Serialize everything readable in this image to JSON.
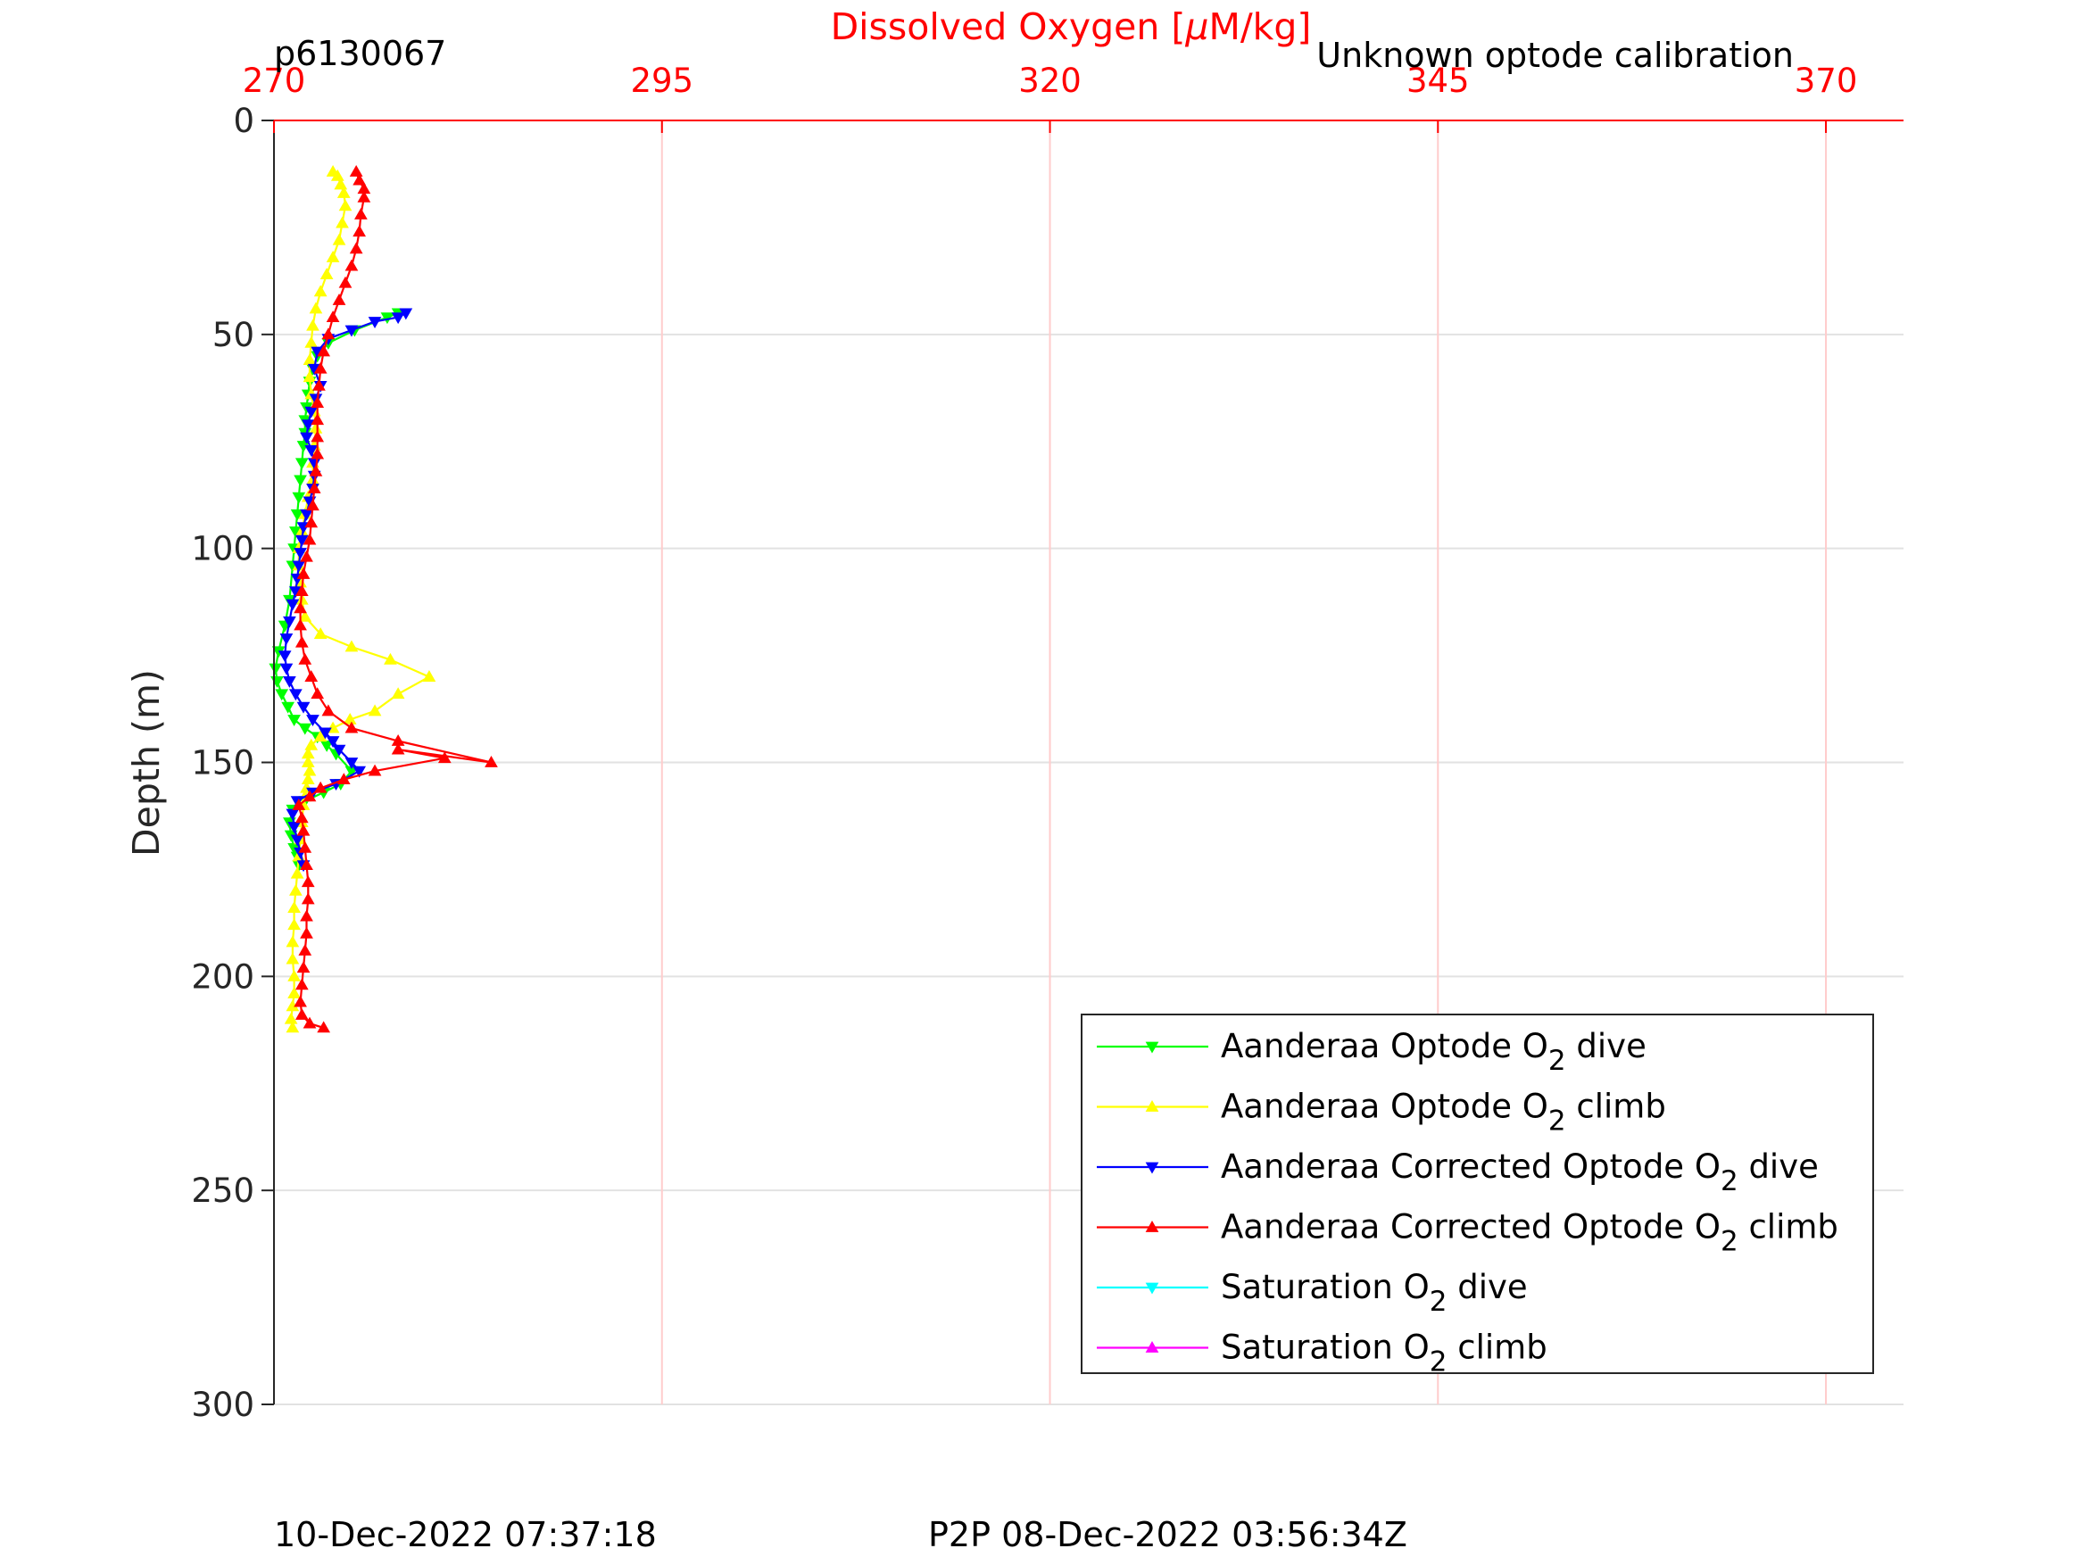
{
  "header": {
    "id_label": "p6130067",
    "calibration_label": "Unknown optode calibration"
  },
  "footer": {
    "left_timestamp": "10-Dec-2022 07:37:18",
    "center_timestamp": "P2P 08-Dec-2022 03:56:34Z"
  },
  "chart_data": {
    "type": "line",
    "title": "",
    "xlabel": "Dissolved Oxygen [μM/kg]",
    "xlabel_parts": [
      "Dissolved Oxygen [",
      "μ",
      "M/kg]"
    ],
    "ylabel": "Depth (m)",
    "xlim": [
      270,
      375
    ],
    "ylim": [
      0,
      300
    ],
    "y_reversed": true,
    "x_axis_position": "top",
    "x_ticks": [
      270,
      295,
      320,
      345,
      370
    ],
    "y_ticks": [
      0,
      50,
      100,
      150,
      200,
      250,
      300
    ],
    "grid": true,
    "colors": {
      "x_axis": "#ff0000",
      "x_grid": "#ffcccc",
      "y_grid": "#e2e2e2",
      "text": "#262626"
    },
    "legend": {
      "position": "bottom-right",
      "entries": [
        {
          "pre": "Aanderaa Optode O",
          "sub": "2",
          "post": " dive",
          "color": "#00ff00",
          "marker": "down"
        },
        {
          "pre": "Aanderaa Optode O",
          "sub": "2",
          "post": " climb",
          "color": "#ffff00",
          "marker": "up"
        },
        {
          "pre": "Aanderaa Corrected Optode O",
          "sub": "2",
          "post": " dive",
          "color": "#0000ff",
          "marker": "down"
        },
        {
          "pre": "Aanderaa Corrected Optode O",
          "sub": "2",
          "post": " climb",
          "color": "#ff0000",
          "marker": "up"
        },
        {
          "pre": "Saturation O",
          "sub": "2",
          "post": " dive",
          "color": "#00ffff",
          "marker": "down"
        },
        {
          "pre": "Saturation O",
          "sub": "2",
          "post": " climb",
          "color": "#ff00ff",
          "marker": "up"
        }
      ]
    },
    "series": [
      {
        "name": "Aanderaa Optode O2 dive",
        "color": "#00ff00",
        "marker": "down",
        "x": [
          278.0,
          277.3,
          275.2,
          273.5,
          272.8,
          272.5,
          272.3,
          272.2,
          272.1,
          272.0,
          272.0,
          271.9,
          271.8,
          271.7,
          271.6,
          271.5,
          271.4,
          271.3,
          271.2,
          271.0,
          270.7,
          270.3,
          270.1,
          270.2,
          270.5,
          270.9,
          271.3,
          272.0,
          272.8,
          273.4,
          274.0,
          275.0,
          274.3,
          273.2,
          272.0,
          271.2,
          271.0,
          271.1,
          271.3,
          271.5,
          271.6
        ],
        "y": [
          45,
          46,
          49,
          52,
          55,
          58,
          61,
          64,
          67,
          70,
          73,
          76,
          80,
          84,
          88,
          92,
          96,
          100,
          104,
          112,
          118,
          124,
          128,
          131,
          134,
          137,
          140,
          142,
          144,
          146,
          148,
          152,
          155,
          157,
          159,
          161,
          164,
          167,
          170,
          172,
          174
        ]
      },
      {
        "name": "Aanderaa Optode O2 climb",
        "color": "#ffff00",
        "marker": "up",
        "x": [
          271.2,
          271.1,
          271.2,
          271.3,
          271.3,
          271.2,
          271.2,
          271.3,
          271.3,
          271.4,
          271.5,
          271.6,
          271.7,
          271.8,
          271.9,
          272.0,
          272.1,
          272.2,
          272.3,
          272.2,
          272.2,
          272.4,
          273.0,
          273.8,
          274.9,
          276.5,
          278.0,
          280.0,
          277.5,
          275.0,
          273.0,
          272.0,
          271.8,
          271.7,
          271.6,
          271.6,
          271.8,
          272.0,
          272.2,
          272.5,
          272.5,
          272.6,
          272.7,
          272.6,
          272.4,
          272.3,
          272.3,
          272.4,
          272.5,
          272.7,
          273.0,
          273.4,
          273.8,
          274.2,
          274.4,
          274.6,
          274.5,
          274.3,
          274.1,
          273.8
        ],
        "y": [
          212,
          210,
          207,
          204,
          200,
          196,
          192,
          188,
          184,
          180,
          176,
          172,
          168,
          164,
          160,
          158,
          156,
          154,
          152,
          150,
          148,
          146,
          144,
          142,
          140,
          138,
          134,
          130,
          126,
          123,
          120,
          116,
          112,
          108,
          104,
          100,
          96,
          92,
          88,
          84,
          80,
          76,
          72,
          68,
          64,
          60,
          56,
          52,
          48,
          44,
          40,
          36,
          32,
          28,
          24,
          20,
          17,
          15,
          13,
          12
        ]
      },
      {
        "name": "Aanderaa Corrected Optode O2 dive",
        "color": "#0000ff",
        "marker": "down",
        "x": [
          278.5,
          278.0,
          276.5,
          275.0,
          273.5,
          272.8,
          272.6,
          273.0,
          272.7,
          272.4,
          272.2,
          272.1,
          272.4,
          272.6,
          272.6,
          272.5,
          272.3,
          272.1,
          271.9,
          271.8,
          271.7,
          271.6,
          271.5,
          271.4,
          271.2,
          271.0,
          270.8,
          270.7,
          270.8,
          271.0,
          271.4,
          271.9,
          272.5,
          273.3,
          273.8,
          274.2,
          275.0,
          275.5,
          274.0,
          272.5,
          271.5,
          271.2,
          271.3,
          271.5,
          271.7,
          271.9
        ],
        "y": [
          45,
          46,
          47,
          49,
          51,
          54,
          58,
          62,
          65,
          68,
          71,
          74,
          77,
          80,
          83,
          86,
          89,
          92,
          95,
          98,
          101,
          104,
          107,
          110,
          113,
          117,
          121,
          125,
          128,
          131,
          134,
          137,
          140,
          143,
          145,
          147,
          150,
          152,
          155,
          157,
          159,
          162,
          165,
          168,
          171,
          174
        ]
      },
      {
        "name": "Aanderaa Corrected Optode O2 climb",
        "color": "#ff0000",
        "marker": "up",
        "x": [
          273.2,
          272.3,
          271.8,
          271.7,
          271.8,
          271.9,
          272.0,
          272.1,
          272.1,
          272.2,
          272.2,
          272.1,
          272.0,
          271.9,
          271.8,
          271.6,
          272.3,
          273.0,
          274.5,
          276.5,
          281.0,
          278.0,
          284.0,
          278.0,
          275.0,
          273.5,
          272.8,
          272.4,
          272.0,
          271.8,
          271.7,
          271.7,
          271.8,
          271.9,
          272.1,
          272.3,
          272.4,
          272.5,
          272.6,
          272.7,
          272.8,
          272.8,
          272.8,
          272.8,
          272.9,
          273.0,
          273.2,
          273.5,
          273.8,
          274.2,
          274.6,
          275.0,
          275.3,
          275.5,
          275.6,
          275.8,
          275.8,
          275.5,
          275.3
        ],
        "y": [
          212,
          211,
          209,
          206,
          202,
          198,
          194,
          190,
          186,
          182,
          178,
          174,
          170,
          166,
          163,
          160,
          158,
          156,
          154,
          152,
          149,
          147,
          150,
          145,
          142,
          138,
          134,
          130,
          126,
          122,
          118,
          114,
          110,
          106,
          102,
          98,
          94,
          90,
          86,
          82,
          78,
          74,
          70,
          66,
          62,
          58,
          54,
          50,
          46,
          42,
          38,
          34,
          30,
          26,
          22,
          18,
          16,
          14,
          12
        ]
      },
      {
        "name": "Saturation O2 dive",
        "color": "#00ffff",
        "marker": "down",
        "x": [],
        "y": []
      },
      {
        "name": "Saturation O2 climb",
        "color": "#ff00ff",
        "marker": "up",
        "x": [],
        "y": []
      }
    ]
  }
}
